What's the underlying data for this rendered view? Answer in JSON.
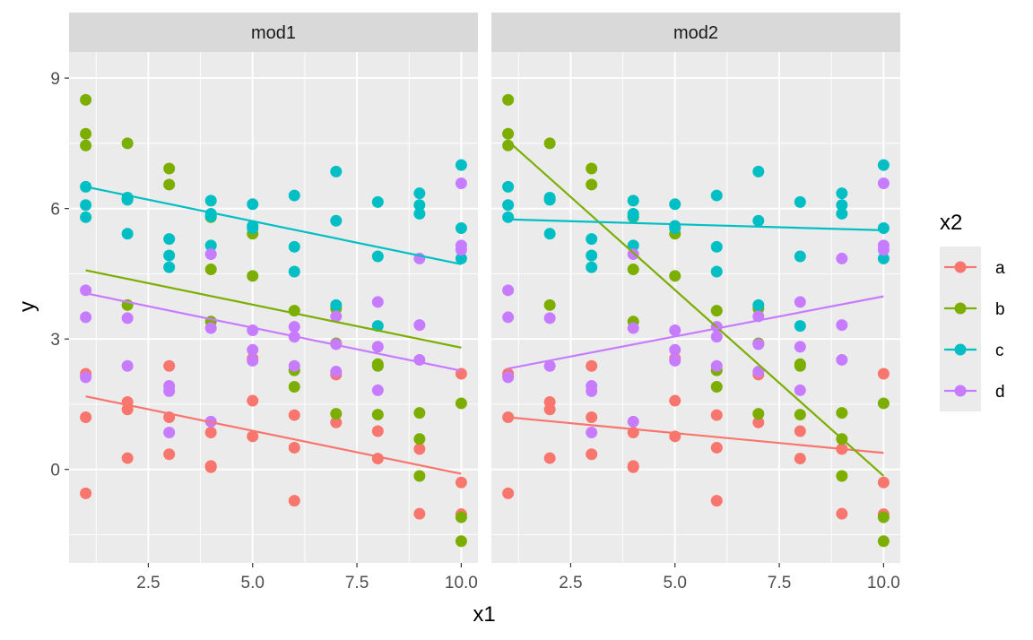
{
  "chart_data": {
    "type": "scatter",
    "xlabel": "x1",
    "ylabel": "y",
    "xlim": [
      0.6,
      10.4
    ],
    "ylim": [
      -2.15,
      9.6
    ],
    "x_ticks": [
      2.5,
      5.0,
      7.5,
      10.0
    ],
    "x_tick_labels": [
      "2.5",
      "5.0",
      "7.5",
      "10.0"
    ],
    "y_ticks": [
      0,
      3,
      6,
      9
    ],
    "y_tick_labels": [
      "0",
      "3",
      "6",
      "9"
    ],
    "grid": true,
    "legend": {
      "title": "x2",
      "position": "right",
      "entries": [
        {
          "label": "a",
          "color": "#F8766D"
        },
        {
          "label": "b",
          "color": "#7CAE00"
        },
        {
          "label": "c",
          "color": "#00BFC4"
        },
        {
          "label": "d",
          "color": "#C77CFF"
        }
      ]
    },
    "points": {
      "a": [
        [
          1,
          2.2
        ],
        [
          1,
          1.2
        ],
        [
          1,
          -0.55
        ],
        [
          2,
          1.55
        ],
        [
          2,
          1.38
        ],
        [
          2,
          0.26
        ],
        [
          3,
          2.38
        ],
        [
          3,
          1.2
        ],
        [
          3,
          0.35
        ],
        [
          4,
          0.85
        ],
        [
          4,
          0.08
        ],
        [
          4,
          0.05
        ],
        [
          5,
          2.55
        ],
        [
          5,
          1.58
        ],
        [
          5,
          0.76
        ],
        [
          6,
          1.25
        ],
        [
          6,
          0.5
        ],
        [
          6,
          -0.72
        ],
        [
          7,
          2.18
        ],
        [
          7,
          1.08
        ],
        [
          8,
          0.88
        ],
        [
          8,
          0.25
        ],
        [
          9,
          0.47
        ],
        [
          9,
          -1.02
        ],
        [
          10,
          2.2
        ],
        [
          10,
          -0.3
        ],
        [
          10,
          -1.03
        ]
      ],
      "b": [
        [
          1,
          8.5
        ],
        [
          1,
          7.72
        ],
        [
          1,
          7.45
        ],
        [
          2,
          7.5
        ],
        [
          2,
          6.22
        ],
        [
          2,
          3.78
        ],
        [
          3,
          6.92
        ],
        [
          3,
          6.55
        ],
        [
          4,
          5.8
        ],
        [
          4,
          4.6
        ],
        [
          4,
          3.4
        ],
        [
          5,
          5.42
        ],
        [
          5,
          4.45
        ],
        [
          6,
          3.65
        ],
        [
          6,
          2.28
        ],
        [
          6,
          1.9
        ],
        [
          7,
          3.7
        ],
        [
          7,
          2.9
        ],
        [
          7,
          1.28
        ],
        [
          8,
          2.42
        ],
        [
          8,
          2.38
        ],
        [
          8,
          1.26
        ],
        [
          9,
          1.3
        ],
        [
          9,
          0.7
        ],
        [
          9,
          -0.15
        ],
        [
          10,
          1.52
        ],
        [
          10,
          -1.1
        ],
        [
          10,
          -1.65
        ]
      ],
      "c": [
        [
          1,
          6.5
        ],
        [
          1,
          6.08
        ],
        [
          1,
          5.8
        ],
        [
          2,
          6.25
        ],
        [
          2,
          6.2
        ],
        [
          2,
          5.42
        ],
        [
          3,
          5.3
        ],
        [
          3,
          4.92
        ],
        [
          3,
          4.65
        ],
        [
          4,
          6.18
        ],
        [
          4,
          5.88
        ],
        [
          4,
          5.82
        ],
        [
          4,
          5.15
        ],
        [
          5,
          6.1
        ],
        [
          5,
          5.6
        ],
        [
          5,
          5.55
        ],
        [
          6,
          6.3
        ],
        [
          6,
          5.12
        ],
        [
          6,
          4.55
        ],
        [
          7,
          6.85
        ],
        [
          7,
          5.72
        ],
        [
          7,
          3.78
        ],
        [
          8,
          6.15
        ],
        [
          8,
          4.9
        ],
        [
          8,
          3.3
        ],
        [
          9,
          6.35
        ],
        [
          9,
          6.08
        ],
        [
          9,
          5.88
        ],
        [
          10,
          7.0
        ],
        [
          10,
          5.55
        ],
        [
          10,
          4.85
        ]
      ],
      "d": [
        [
          1,
          4.12
        ],
        [
          1,
          3.5
        ],
        [
          1,
          2.12
        ],
        [
          2,
          3.48
        ],
        [
          2,
          2.38
        ],
        [
          3,
          1.92
        ],
        [
          3,
          1.8
        ],
        [
          3,
          0.85
        ],
        [
          4,
          4.95
        ],
        [
          4,
          3.25
        ],
        [
          4,
          1.1
        ],
        [
          5,
          3.2
        ],
        [
          5,
          2.75
        ],
        [
          5,
          2.5
        ],
        [
          6,
          3.28
        ],
        [
          6,
          3.05
        ],
        [
          6,
          2.38
        ],
        [
          7,
          3.52
        ],
        [
          7,
          2.88
        ],
        [
          7,
          2.25
        ],
        [
          8,
          3.85
        ],
        [
          8,
          2.82
        ],
        [
          8,
          1.82
        ],
        [
          9,
          4.85
        ],
        [
          9,
          3.32
        ],
        [
          9,
          2.52
        ],
        [
          10,
          6.58
        ],
        [
          10,
          5.15
        ],
        [
          10,
          5.05
        ]
      ]
    },
    "facets": [
      {
        "label": "mod1",
        "lines": [
          {
            "group": "a",
            "x": [
              1,
              10
            ],
            "y": [
              1.68,
              -0.1
            ]
          },
          {
            "group": "b",
            "x": [
              1,
              10
            ],
            "y": [
              4.58,
              2.8
            ]
          },
          {
            "group": "c",
            "x": [
              1,
              10
            ],
            "y": [
              6.5,
              4.72
            ]
          },
          {
            "group": "d",
            "x": [
              1,
              10
            ],
            "y": [
              4.05,
              2.27
            ]
          }
        ]
      },
      {
        "label": "mod2",
        "lines": [
          {
            "group": "a",
            "x": [
              1,
              10
            ],
            "y": [
              1.2,
              0.38
            ]
          },
          {
            "group": "b",
            "x": [
              1,
              10
            ],
            "y": [
              7.55,
              -0.15
            ]
          },
          {
            "group": "c",
            "x": [
              1,
              10
            ],
            "y": [
              5.75,
              5.5
            ]
          },
          {
            "group": "d",
            "x": [
              1,
              10
            ],
            "y": [
              2.32,
              3.98
            ]
          }
        ]
      }
    ]
  }
}
